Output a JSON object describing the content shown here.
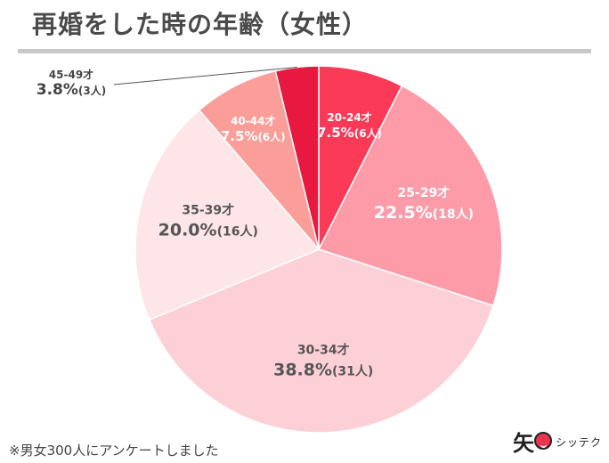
{
  "page": {
    "title": "再婚をした時の年齢（女性）",
    "note": "※男女300人にアンケートしました",
    "brand_mark": "矢",
    "brand_name": "シッテク"
  },
  "chart_data": {
    "type": "pie",
    "title": "再婚をした時の年齢（女性）",
    "start_angle_deg": 0,
    "direction": "clockwise",
    "slices": [
      {
        "category": "20-24才",
        "percent": 7.5,
        "percent_label": "7.5%",
        "count": 6,
        "count_label": "(6人)",
        "color": "#fb3a58",
        "label_color": "#ffffff",
        "big": false
      },
      {
        "category": "25-29才",
        "percent": 22.5,
        "percent_label": "22.5%",
        "count": 18,
        "count_label": "(18人)",
        "color": "#fd9ba9",
        "label_color": "#ffffff",
        "big": true
      },
      {
        "category": "30-34才",
        "percent": 38.8,
        "percent_label": "38.8%",
        "count": 31,
        "count_label": "(31人)",
        "color": "#fdd0d8",
        "label_color": "#555555",
        "big": true
      },
      {
        "category": "35-39才",
        "percent": 20.0,
        "percent_label": "20.0%",
        "count": 16,
        "count_label": "(16人)",
        "color": "#fde5e8",
        "label_color": "#555555",
        "big": true
      },
      {
        "category": "40-44才",
        "percent": 7.5,
        "percent_label": "7.5%",
        "count": 6,
        "count_label": "(6人)",
        "color": "#fb9d99",
        "label_color": "#ffffff",
        "big": false
      },
      {
        "category": "45-49才",
        "percent": 3.8,
        "percent_label": "3.8%",
        "count": 3,
        "count_label": "(3人)",
        "color": "#e91840",
        "label_color": "#444444",
        "big": false,
        "outside": true
      }
    ]
  }
}
